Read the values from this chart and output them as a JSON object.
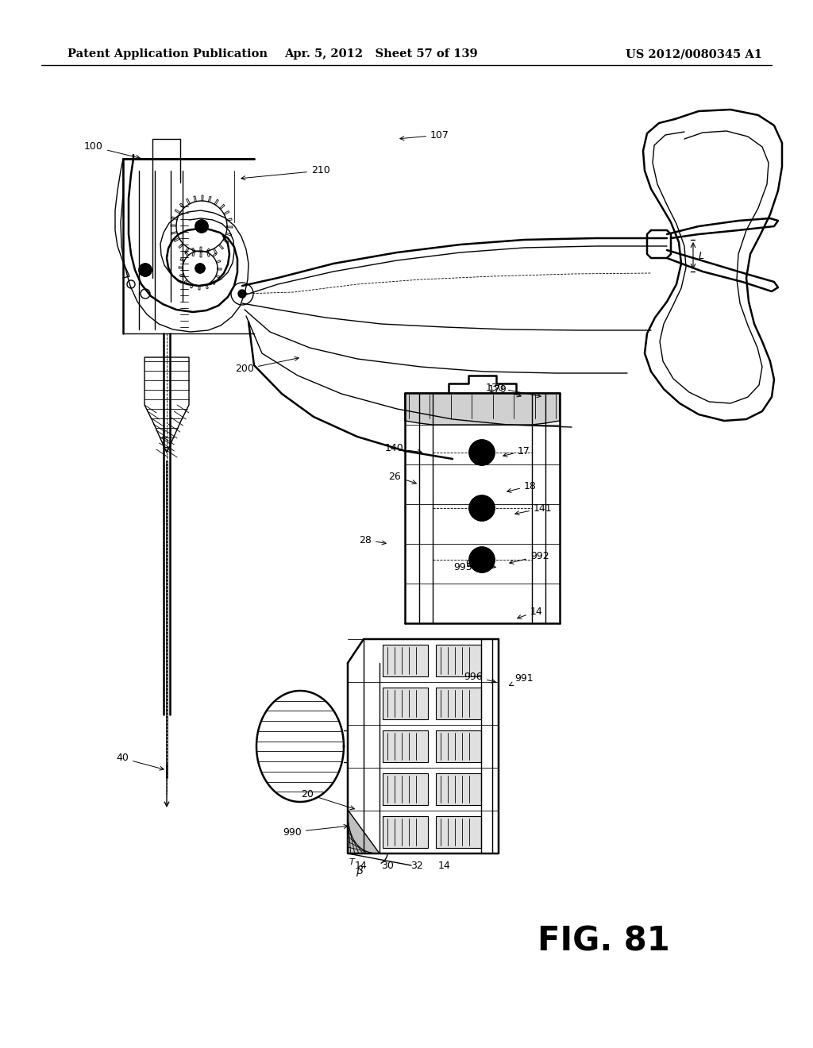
{
  "title_left": "Patent Application Publication",
  "title_center": "Apr. 5, 2012   Sheet 57 of 139",
  "title_right": "US 2012/0080345 A1",
  "fig_label": "FIG. 81",
  "bg_color": "#ffffff",
  "line_color": "#000000",
  "header_fontsize": 10.5,
  "fig_label_fontsize": 30,
  "annotation_fontsize": 9
}
